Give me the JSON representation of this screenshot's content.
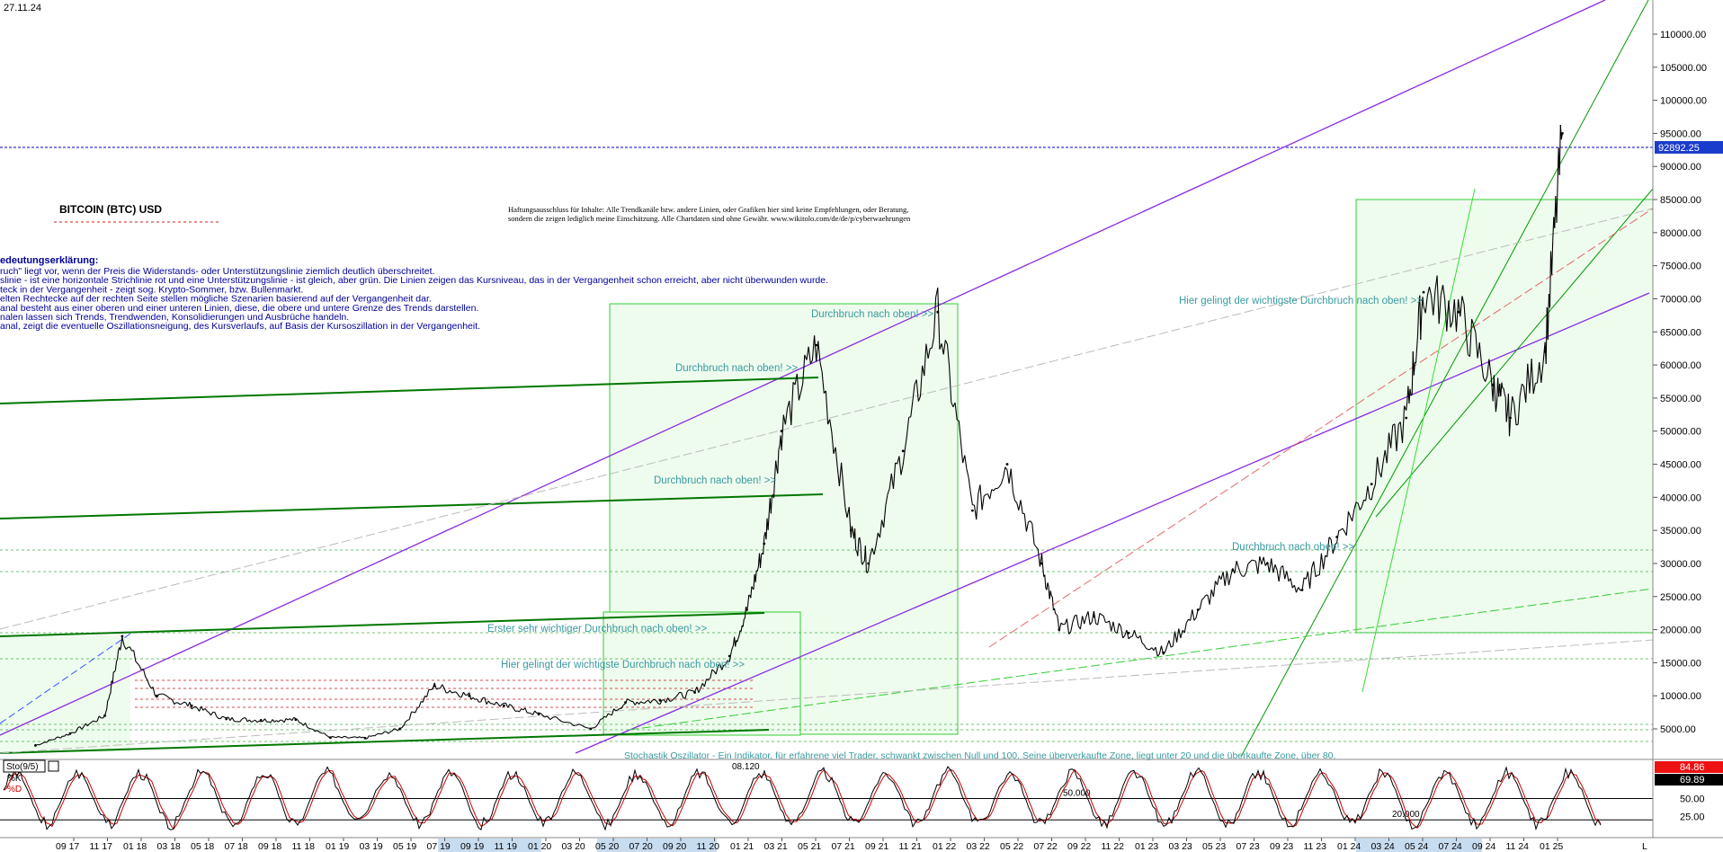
{
  "chart_data": {
    "type": "line",
    "date": "27.11.24",
    "title": "BITCOIN (BTC) USD",
    "disclaimer": [
      "Haftungsausschluss für Inhalte: Alle Trendkanäle bzw. andere Linien, oder Grafiken hier sind keine Empfehlungen, oder Beratung,",
      "sondern die zeigen lediglich meine Einschätzung. Alle Chartdaten sind ohne Gewähr.  www.wikitolo.com/de/de/p/cyberwaehrungen"
    ],
    "legend_title": "edeutungserklärung:",
    "legend_lines": [
      "ruch\" liegt vor, wenn der Preis die Widerstands- oder Unterstützungslinie ziemlich deutlich überschreitet.",
      "slinie - ist eine horizontale Strichlinie rot und eine Unterstützungslinie - ist gleich, aber grün. Die Linien zeigen das Kursniveau, das in der Vergangenheit schon erreicht, aber nicht überwunden wurde.",
      "teck in der Vergangenheit - zeigt sog. Krypto-Sommer, bzw. Bullenmarkt.",
      "elten Rechtecke auf der rechten Seite stellen mögliche Szenarien basierend auf der Vergangenheit dar.",
      "anal besteht aus einer oberen und einer unteren Linien, diese, die obere und untere Grenze des Trends darstellen.",
      "nalen lassen sich Trends, Trendwenden, Konsolidierungen und Ausbrüche handeln.",
      "anal, zeigt die eventuelle Oszillationsneigung, des Kursverlaufs, auf Basis der Kursoszillation in der Vergangenheit."
    ],
    "annotations": [
      "Durchbruch nach oben! >>",
      "Durchbruch nach oben! >>",
      "Durchbruch nach oben! >>",
      "Hier gelingt der wichtigste Durchbruch nach oben! >>",
      "Erster sehr wichtiger Durchbruch nach oben! >>",
      "Hier gelingt der wichtigste Durchbruch nach oben! >>",
      "Durchbruch nach oben! >>"
    ],
    "oscillator_note": "Stochastik Oszillator - Ein Indikator, für erfahrene viel Trader, schwankt zwischen Null und 100. Seine überverkaufte Zone, liegt unter 20 und die überkaufte Zone, über 80.",
    "ylim": [
      0,
      115000
    ],
    "y_ticks": [
      "5000.00",
      "10000.00",
      "15000.00",
      "20000.00",
      "25000.00",
      "30000.00",
      "35000.00",
      "40000.00",
      "45000.00",
      "50000.00",
      "55000.00",
      "60000.00",
      "65000.00",
      "70000.00",
      "75000.00",
      "80000.00",
      "85000.00",
      "90000.00",
      "95000.00",
      "100000.00",
      "105000.00",
      "110000.00"
    ],
    "current_price": "92892.25",
    "x_ticks": [
      "09 17",
      "11 17",
      "01 18",
      "03 18",
      "05 18",
      "07 18",
      "09 18",
      "11 18",
      "01 19",
      "03 19",
      "05 19",
      "07 19",
      "09 19",
      "11 19",
      "01 20",
      "03 20",
      "05 20",
      "07 20",
      "09 20",
      "11 20",
      "01 21",
      "03 21",
      "05 21",
      "07 21",
      "09 21",
      "11 21",
      "01 22",
      "03 22",
      "05 22",
      "07 22",
      "09 22",
      "11 22",
      "01 23",
      "03 23",
      "05 23",
      "07 23",
      "09 23",
      "11 23",
      "01 24",
      "03 24",
      "05 24",
      "07 24",
      "09 24",
      "11 24",
      "01 25"
    ],
    "x_end_label": "L",
    "series": [
      {
        "name": "BTC",
        "x": [
          "2017-07",
          "2017-09",
          "2017-11",
          "2017-12",
          "2018-02",
          "2018-04",
          "2018-06",
          "2018-08",
          "2018-10",
          "2018-12",
          "2019-02",
          "2019-04",
          "2019-06",
          "2019-08",
          "2019-10",
          "2019-12",
          "2020-03",
          "2020-05",
          "2020-07",
          "2020-09",
          "2020-11",
          "2020-12",
          "2021-01",
          "2021-02",
          "2021-04",
          "2021-06",
          "2021-07",
          "2021-09",
          "2021-11",
          "2022-01",
          "2022-03",
          "2022-05",
          "2022-06",
          "2022-08",
          "2022-10",
          "2022-12",
          "2023-02",
          "2023-04",
          "2023-06",
          "2023-08",
          "2023-10",
          "2023-12",
          "2024-02",
          "2024-03",
          "2024-05",
          "2024-07",
          "2024-08",
          "2024-10",
          "2024-11"
        ],
        "values": [
          2500,
          4300,
          7000,
          19000,
          10000,
          8500,
          6500,
          6300,
          6400,
          3700,
          3600,
          5000,
          11500,
          10000,
          8500,
          7200,
          5000,
          9000,
          9300,
          10500,
          16000,
          23000,
          33000,
          50000,
          63000,
          35000,
          30000,
          47000,
          68000,
          38000,
          45000,
          30000,
          20000,
          22000,
          19500,
          16500,
          23000,
          29000,
          30000,
          26000,
          34000,
          42000,
          52000,
          71000,
          68000,
          57000,
          52000,
          62000,
          95000
        ]
      },
      {
        "name": "Sto(9/5)",
        "values": [
          84.86,
          69.89
        ]
      }
    ],
    "oscillator_label": "Sto(9/5)",
    "k_label": "%K",
    "d_label": "%D",
    "oscillator_ticks": [
      "50.00",
      "25.00"
    ],
    "oscillator_levels": [
      "50.000",
      "20.000"
    ],
    "oscillator_value_k": "84.86",
    "oscillator_value_d": "69.89",
    "marker_label": "08.120",
    "colors": {
      "price": "#000000",
      "up_candle": "#ffffff",
      "current_line": "#0000cc",
      "channel": "#8a2be2",
      "green": "#008000",
      "red": "#cc0000",
      "annotation": "#3a9aa0",
      "legend_text": "#000099",
      "box": "#33cc33",
      "box_fill": "#eefcee",
      "osc_k": "#000000",
      "osc_d": "#cc0000",
      "badge_k": "#ee1111",
      "badge_d": "#000000"
    }
  }
}
